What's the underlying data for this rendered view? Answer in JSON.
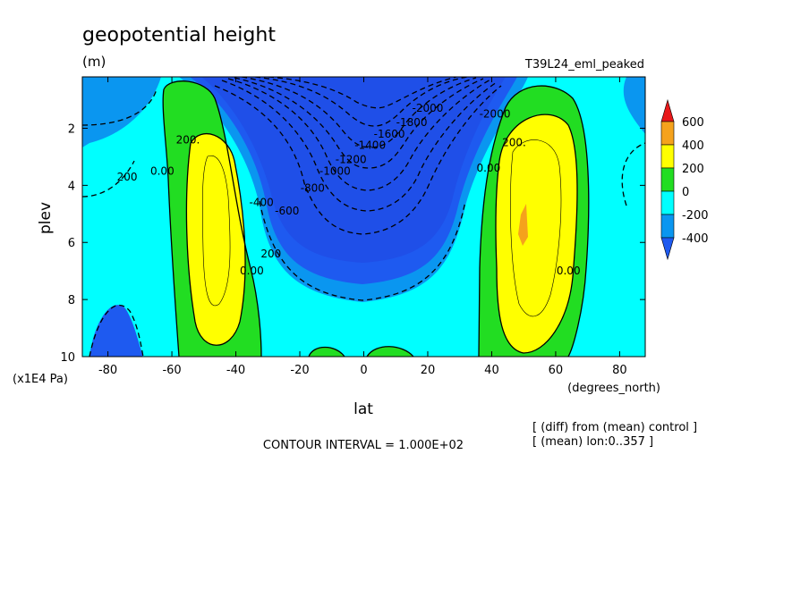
{
  "header": {
    "title": "geopotential height",
    "units": "(m)",
    "experiment": "T39L24_eml_peaked"
  },
  "footer": {
    "contour_interval": "CONTOUR INTERVAL = 1.000E+02",
    "note_diff": "[ (diff) from (mean) control ]",
    "note_mean": "[ (mean) lon:0..357 ]"
  },
  "chart_data": {
    "type": "heatmap",
    "title": "geopotential height",
    "units": "(m)",
    "xlabel": "lat",
    "xunit": "(degrees_north)",
    "ylabel": "plev",
    "yunit": "(x1E4 Pa)",
    "xlim": [
      -88,
      88
    ],
    "ylim": [
      10,
      0.2
    ],
    "x_ticks": [
      -80,
      -60,
      -40,
      -20,
      0,
      20,
      40,
      60,
      80
    ],
    "x_tick_labels": [
      "-80",
      "-60",
      "-40",
      "-20",
      "0",
      "20",
      "40",
      "60",
      "80"
    ],
    "y_ticks": [
      2,
      4,
      6,
      8,
      10
    ],
    "y_tick_labels": [
      "2",
      "4",
      "6",
      "8",
      "10"
    ],
    "contour_interval": 100,
    "legend": {
      "position": "right",
      "levels": [
        "600",
        "400",
        "200",
        "0",
        "-200",
        "-400"
      ],
      "bands": [
        {
          "range": "> 600",
          "color": "#e8181a"
        },
        {
          "range": "400 to 600",
          "color": "#f5a21c"
        },
        {
          "range": "200 to 400",
          "color": "#ffff00"
        },
        {
          "range": "0 to 200",
          "color": "#22dd22"
        },
        {
          "range": "-200 to 0",
          "color": "#00ffff"
        },
        {
          "range": "-400 to -200",
          "color": "#0a96f0"
        },
        {
          "range": "< -400",
          "color": "#1e5af0"
        }
      ]
    },
    "features": [
      {
        "name": "southern positive jet",
        "lat": -48,
        "plev_range": [
          0.5,
          10
        ],
        "peak": 300
      },
      {
        "name": "northern positive jet",
        "lat": 50,
        "plev_range": [
          0.5,
          10
        ],
        "peak": 400
      },
      {
        "name": "tropical upper minimum",
        "lat": 0,
        "plev": 0.3,
        "min": -2000
      }
    ],
    "contour_labels": [
      {
        "text": "-2000",
        "lat": 20,
        "plev": 1.3
      },
      {
        "text": "-1800",
        "lat": 15,
        "plev": 1.8
      },
      {
        "text": "-1600",
        "lat": 8,
        "plev": 2.2
      },
      {
        "text": "-1400",
        "lat": 2,
        "plev": 2.6
      },
      {
        "text": "-1200",
        "lat": -4,
        "plev": 3.1
      },
      {
        "text": "-1000",
        "lat": -9,
        "plev": 3.5
      },
      {
        "text": "-800",
        "lat": -16,
        "plev": 4.1
      },
      {
        "text": "-600",
        "lat": -24,
        "plev": 4.9
      },
      {
        "text": "-400",
        "lat": -32,
        "plev": 4.6
      },
      {
        "text": "200.",
        "lat": -55,
        "plev": 2.4
      },
      {
        "text": "0.00",
        "lat": -63,
        "plev": 3.5
      },
      {
        "text": "200",
        "lat": -74,
        "plev": 3.7
      },
      {
        "text": "0.00",
        "lat": -35,
        "plev": 7.0
      },
      {
        "text": "200",
        "lat": -29,
        "plev": 6.4
      },
      {
        "text": "-2000",
        "lat": 41,
        "plev": 1.5
      },
      {
        "text": "200.",
        "lat": 47,
        "plev": 2.5
      },
      {
        "text": "0.00",
        "lat": 39,
        "plev": 3.4
      },
      {
        "text": "0.00",
        "lat": 64,
        "plev": 7.0
      }
    ]
  }
}
